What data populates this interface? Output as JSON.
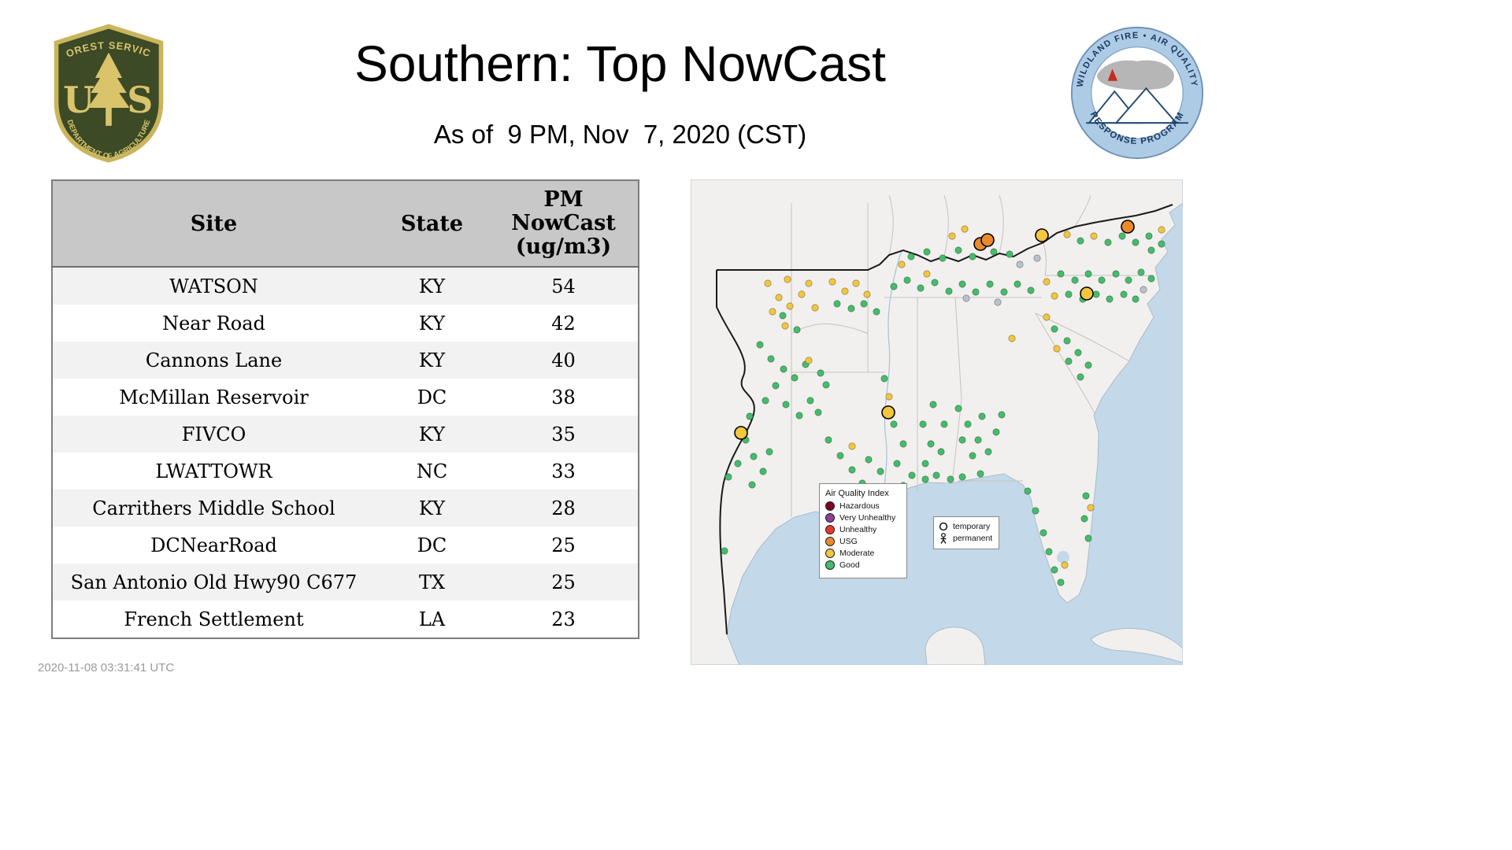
{
  "header": {
    "title": "Southern: Top NowCast",
    "subtitle": "As of  9 PM, Nov  7, 2020 (CST)"
  },
  "fs_logo": {
    "top": "FOREST SERVICE",
    "letter_u": "U",
    "letter_s": "S",
    "bottom": "DEPARTMENT OF AGRICULTURE"
  },
  "wf_logo": {
    "top": "WILDLAND FIRE • AIR QUALITY",
    "bottom": "RESPONSE PROGRAM"
  },
  "table": {
    "col_site": "Site",
    "col_state": "State",
    "pm_lines": [
      "PM",
      "NowCast",
      "(ug/m3)"
    ]
  },
  "chart_data": {
    "type": "table",
    "title": "Southern: Top NowCast",
    "subtitle": "As of 9 PM, Nov 7, 2020 (CST)",
    "columns": [
      "Site",
      "State",
      "PM NowCast (ug/m3)"
    ],
    "rows": [
      [
        "WATSON",
        "KY",
        54
      ],
      [
        "Near Road",
        "KY",
        42
      ],
      [
        "Cannons Lane",
        "KY",
        40
      ],
      [
        "McMillan Reservoir",
        "DC",
        38
      ],
      [
        "FIVCO",
        "KY",
        35
      ],
      [
        "LWATTOWR",
        "NC",
        33
      ],
      [
        "Carrithers Middle School",
        "KY",
        28
      ],
      [
        "DCNearRoad",
        "DC",
        25
      ],
      [
        "San Antonio Old Hwy90 C677",
        "TX",
        25
      ],
      [
        "French Settlement",
        "LA",
        23
      ]
    ]
  },
  "map": {
    "legend": {
      "title": "Air Quality Index",
      "items": [
        {
          "label": "Hazardous",
          "color": "#7e0023"
        },
        {
          "label": "Very Unhealthy",
          "color": "#8f3f97"
        },
        {
          "label": "Unhealthy",
          "color": "#e6392c"
        },
        {
          "label": "USG",
          "color": "#e98a2d"
        },
        {
          "label": "Moderate",
          "color": "#f2c63d"
        },
        {
          "label": "Good",
          "color": "#43bd6b"
        }
      ]
    },
    "marker_legend": {
      "temporary": "temporary",
      "permanent": "permanent"
    },
    "colors": {
      "g": "#43bd6b",
      "m": "#f2c63d",
      "u": "#e98a2d",
      "x": "#b9c3cd"
    },
    "points": [
      [
        98,
        132,
        "m"
      ],
      [
        112,
        150,
        "m"
      ],
      [
        104,
        168,
        "m"
      ],
      [
        126,
        161,
        "m"
      ],
      [
        141,
        146,
        "m"
      ],
      [
        158,
        163,
        "m"
      ],
      [
        120,
        186,
        "m"
      ],
      [
        150,
        132,
        "m"
      ],
      [
        123,
        127,
        "m"
      ],
      [
        117,
        173,
        "g"
      ],
      [
        135,
        191,
        "g"
      ],
      [
        88,
        210,
        "g"
      ],
      [
        102,
        228,
        "g"
      ],
      [
        118,
        241,
        "g"
      ],
      [
        132,
        252,
        "g"
      ],
      [
        146,
        235,
        "g"
      ],
      [
        108,
        262,
        "g"
      ],
      [
        95,
        281,
        "g"
      ],
      [
        121,
        286,
        "g"
      ],
      [
        138,
        300,
        "g"
      ],
      [
        152,
        281,
        "g"
      ],
      [
        162,
        296,
        "g"
      ],
      [
        75,
        301,
        "g"
      ],
      [
        70,
        331,
        "g"
      ],
      [
        80,
        352,
        "g"
      ],
      [
        92,
        371,
        "g"
      ],
      [
        60,
        361,
        "g"
      ],
      [
        48,
        378,
        "g"
      ],
      [
        100,
        346,
        "g"
      ],
      [
        78,
        388,
        "g"
      ],
      [
        43,
        472,
        "g"
      ],
      [
        150,
        230,
        "m"
      ],
      [
        165,
        246,
        "g"
      ],
      [
        172,
        261,
        "g"
      ],
      [
        175,
        331,
        "g"
      ],
      [
        190,
        351,
        "g"
      ],
      [
        205,
        369,
        "g"
      ],
      [
        218,
        386,
        "g"
      ],
      [
        191,
        396,
        "g"
      ],
      [
        168,
        391,
        "g"
      ],
      [
        232,
        393,
        "g"
      ],
      [
        205,
        339,
        "m"
      ],
      [
        226,
        356,
        "g"
      ],
      [
        241,
        371,
        "g"
      ],
      [
        258,
        311,
        "g"
      ],
      [
        270,
        336,
        "g"
      ],
      [
        262,
        361,
        "g"
      ],
      [
        281,
        376,
        "g"
      ],
      [
        252,
        276,
        "m"
      ],
      [
        246,
        253,
        "g"
      ],
      [
        295,
        311,
        "g"
      ],
      [
        305,
        336,
        "g"
      ],
      [
        298,
        361,
        "g"
      ],
      [
        312,
        376,
        "g"
      ],
      [
        318,
        346,
        "g"
      ],
      [
        322,
        311,
        "g"
      ],
      [
        308,
        286,
        "g"
      ],
      [
        340,
        291,
        "g"
      ],
      [
        352,
        311,
        "g"
      ],
      [
        365,
        331,
        "g"
      ],
      [
        378,
        346,
        "g"
      ],
      [
        388,
        321,
        "g"
      ],
      [
        395,
        299,
        "g"
      ],
      [
        358,
        351,
        "g"
      ],
      [
        345,
        331,
        "g"
      ],
      [
        370,
        301,
        "g"
      ],
      [
        408,
        202,
        "m"
      ],
      [
        345,
        378,
        "g"
      ],
      [
        368,
        374,
        "g"
      ],
      [
        330,
        381,
        "g"
      ],
      [
        298,
        381,
        "g"
      ],
      [
        270,
        389,
        "g"
      ],
      [
        428,
        396,
        "g"
      ],
      [
        438,
        421,
        "g"
      ],
      [
        448,
        449,
        "g"
      ],
      [
        455,
        473,
        "g"
      ],
      [
        462,
        496,
        "g"
      ],
      [
        470,
        512,
        "g"
      ],
      [
        475,
        490,
        "m"
      ],
      [
        500,
        431,
        "g"
      ],
      [
        505,
        456,
        "g"
      ],
      [
        508,
        417,
        "m"
      ],
      [
        502,
        402,
        "g"
      ],
      [
        180,
        130,
        "m"
      ],
      [
        196,
        142,
        "m"
      ],
      [
        210,
        132,
        "m"
      ],
      [
        224,
        146,
        "m"
      ],
      [
        186,
        158,
        "g"
      ],
      [
        204,
        164,
        "g"
      ],
      [
        220,
        158,
        "g"
      ],
      [
        236,
        168,
        "g"
      ],
      [
        258,
        136,
        "g"
      ],
      [
        275,
        128,
        "g"
      ],
      [
        292,
        138,
        "g"
      ],
      [
        310,
        131,
        "g"
      ],
      [
        328,
        142,
        "g"
      ],
      [
        345,
        133,
        "g"
      ],
      [
        362,
        143,
        "g"
      ],
      [
        380,
        133,
        "g"
      ],
      [
        398,
        143,
        "g"
      ],
      [
        415,
        133,
        "g"
      ],
      [
        432,
        141,
        "g"
      ],
      [
        300,
        120,
        "m"
      ],
      [
        350,
        151,
        "x"
      ],
      [
        390,
        156,
        "x"
      ],
      [
        280,
        98,
        "g"
      ],
      [
        300,
        92,
        "g"
      ],
      [
        320,
        100,
        "g"
      ],
      [
        340,
        90,
        "g"
      ],
      [
        358,
        98,
        "g"
      ],
      [
        385,
        92,
        "g"
      ],
      [
        268,
        108,
        "m"
      ],
      [
        405,
        95,
        "g"
      ],
      [
        332,
        72,
        "m"
      ],
      [
        348,
        63,
        "m"
      ],
      [
        478,
        70,
        "m"
      ],
      [
        495,
        78,
        "g"
      ],
      [
        512,
        72,
        "m"
      ],
      [
        530,
        80,
        "g"
      ],
      [
        548,
        72,
        "g"
      ],
      [
        565,
        80,
        "g"
      ],
      [
        582,
        72,
        "g"
      ],
      [
        598,
        64,
        "m"
      ],
      [
        585,
        90,
        "g"
      ],
      [
        598,
        82,
        "g"
      ],
      [
        470,
        120,
        "g"
      ],
      [
        488,
        128,
        "g"
      ],
      [
        505,
        120,
        "g"
      ],
      [
        522,
        128,
        "g"
      ],
      [
        540,
        120,
        "g"
      ],
      [
        556,
        128,
        "g"
      ],
      [
        572,
        118,
        "g"
      ],
      [
        585,
        126,
        "g"
      ],
      [
        480,
        146,
        "g"
      ],
      [
        498,
        152,
        "g"
      ],
      [
        515,
        146,
        "g"
      ],
      [
        532,
        152,
        "g"
      ],
      [
        550,
        146,
        "g"
      ],
      [
        565,
        152,
        "g"
      ],
      [
        452,
        130,
        "m"
      ],
      [
        462,
        148,
        "m"
      ],
      [
        418,
        108,
        "x"
      ],
      [
        440,
        100,
        "x"
      ],
      [
        575,
        140,
        "x"
      ],
      [
        462,
        190,
        "g"
      ],
      [
        478,
        205,
        "g"
      ],
      [
        492,
        220,
        "g"
      ],
      [
        505,
        236,
        "g"
      ],
      [
        480,
        231,
        "g"
      ],
      [
        465,
        215,
        "m"
      ],
      [
        495,
        251,
        "g"
      ],
      [
        452,
        175,
        "m"
      ],
      [
        368,
        82,
        "u",
        1
      ],
      [
        377,
        77,
        "u",
        1
      ],
      [
        555,
        60,
        "u",
        1
      ],
      [
        446,
        71,
        "m",
        1
      ],
      [
        503,
        145,
        "m",
        1
      ],
      [
        251,
        296,
        "m",
        1
      ],
      [
        64,
        322,
        "m",
        1
      ]
    ]
  },
  "footer": {
    "timestamp": "2020-11-08 03:31:41 UTC"
  }
}
